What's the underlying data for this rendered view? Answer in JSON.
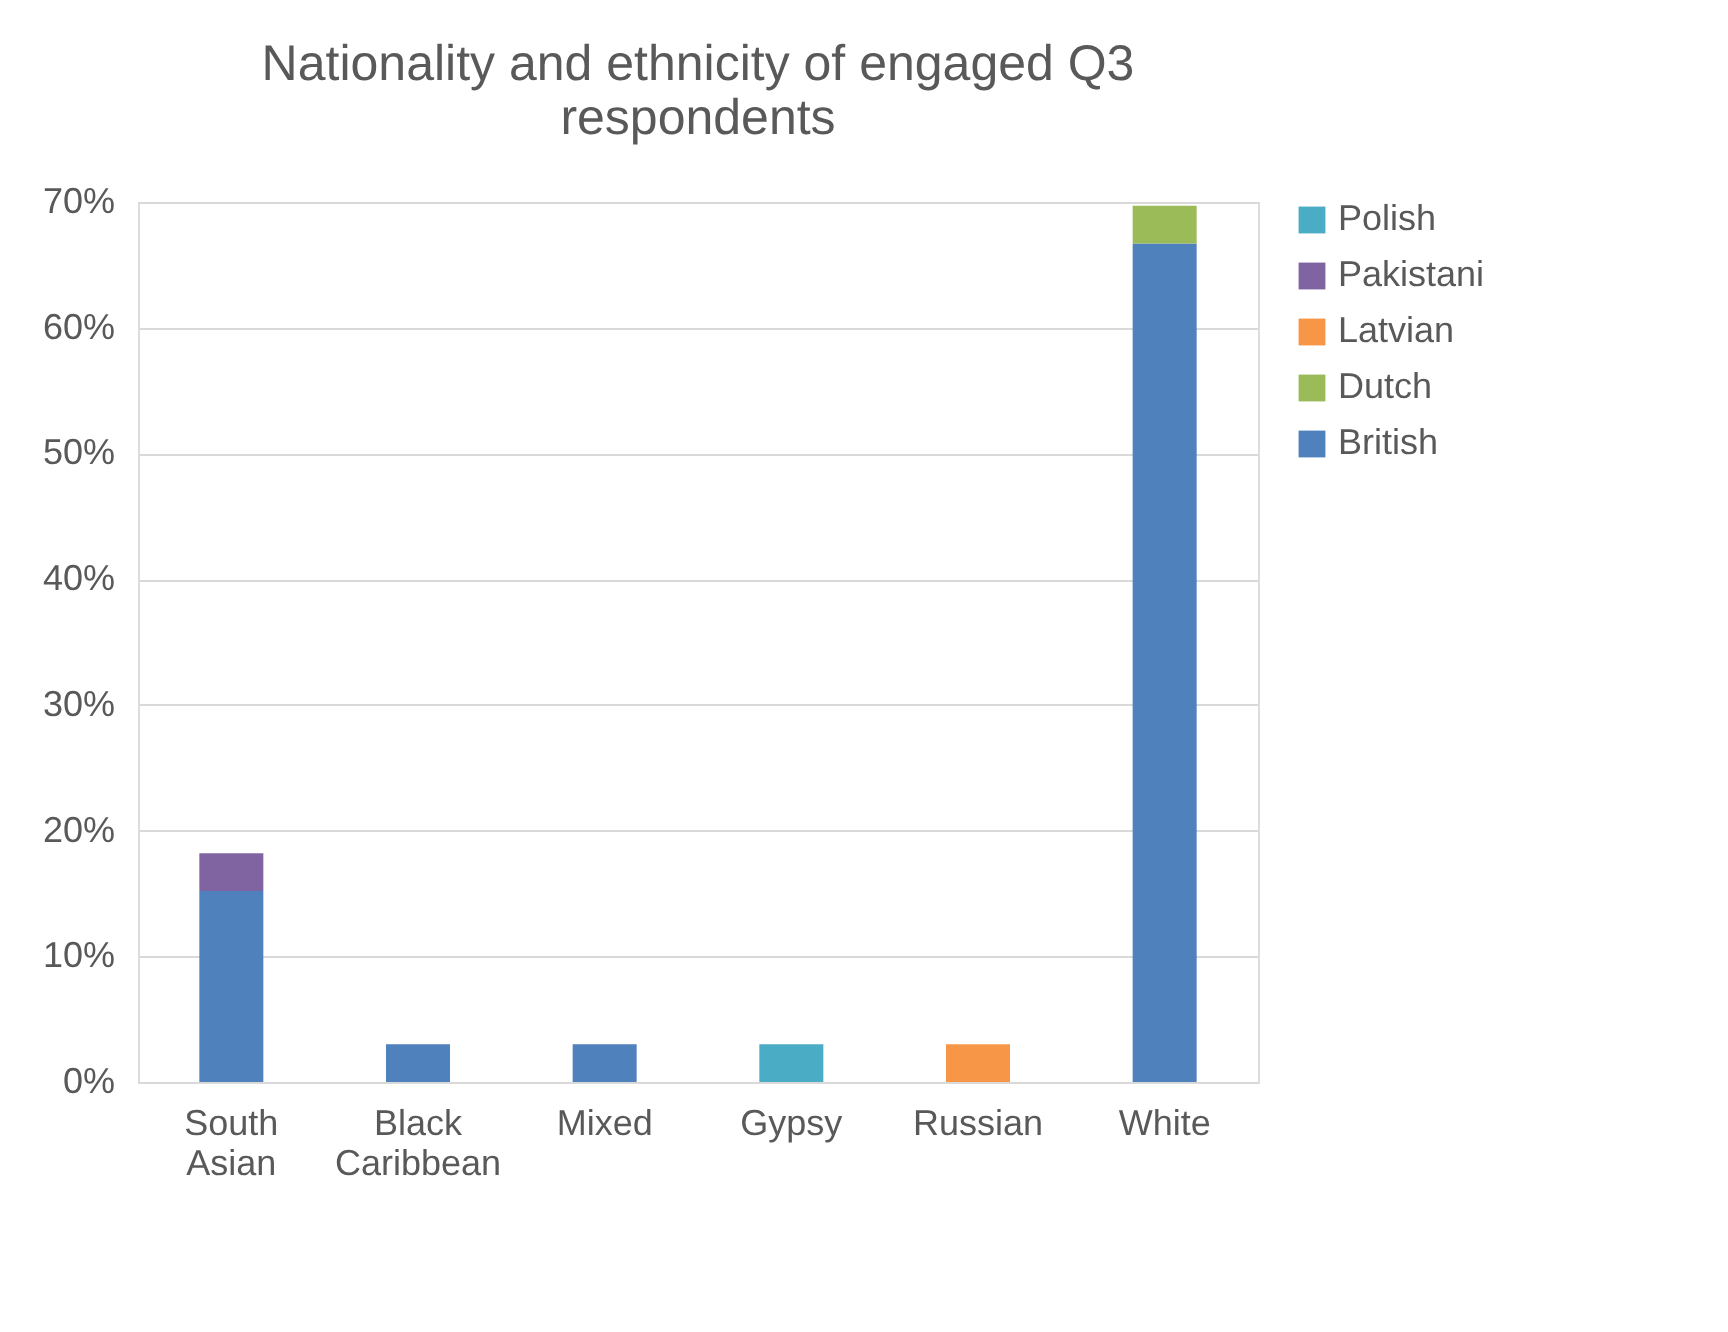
{
  "chart_data": {
    "type": "bar",
    "stacked": true,
    "title": "Nationality and ethnicity of engaged Q3 respondents",
    "categories": [
      "South Asian",
      "Black Caribbean",
      "Mixed",
      "Gypsy",
      "Russian",
      "White"
    ],
    "series": [
      {
        "name": "British",
        "color": "#4f81bd",
        "values": [
          15.2,
          3.0,
          3.0,
          null,
          null,
          66.7
        ]
      },
      {
        "name": "Dutch",
        "color": "#9bbb59",
        "values": [
          null,
          null,
          null,
          null,
          null,
          3.0
        ]
      },
      {
        "name": "Latvian",
        "color": "#f79646",
        "values": [
          null,
          null,
          null,
          null,
          3.0,
          null
        ]
      },
      {
        "name": "Pakistani",
        "color": "#8064a2",
        "values": [
          3.0,
          null,
          null,
          null,
          null,
          null
        ]
      },
      {
        "name": "Polish",
        "color": "#4bacc6",
        "values": [
          null,
          null,
          null,
          3.0,
          null,
          null
        ]
      }
    ],
    "ylim": [
      0,
      70
    ],
    "yticks": [
      {
        "value": 0,
        "label": "0%"
      },
      {
        "value": 10,
        "label": "10%"
      },
      {
        "value": 20,
        "label": "20%"
      },
      {
        "value": 30,
        "label": "30%"
      },
      {
        "value": 40,
        "label": "40%"
      },
      {
        "value": 50,
        "label": "50%"
      },
      {
        "value": 60,
        "label": "60%"
      },
      {
        "value": 70,
        "label": "70%"
      }
    ],
    "grid": "y",
    "legend": "right"
  }
}
